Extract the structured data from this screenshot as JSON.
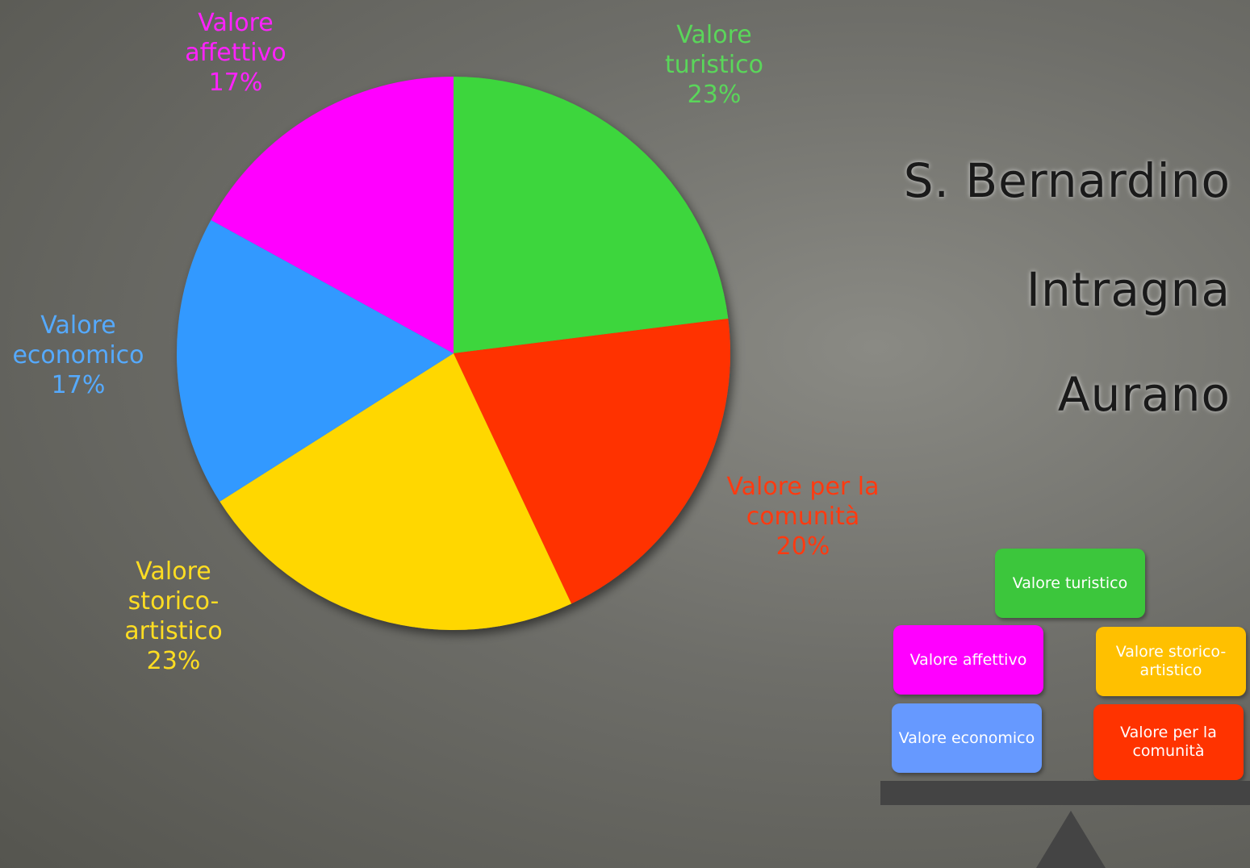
{
  "chart_data": {
    "type": "pie",
    "categories": [
      "Valore turistico",
      "Valore per la comunità",
      "Valore storico-artistico",
      "Valore economico",
      "Valore affettivo"
    ],
    "values": [
      23,
      20,
      23,
      17,
      17
    ],
    "value_labels": [
      "23%",
      "20%",
      "23%",
      "17%",
      "17%"
    ],
    "colors": [
      "#3cd63c",
      "#ff3300",
      "#ffd700",
      "#3399ff",
      "#ff00ff"
    ]
  },
  "places": [
    "S. Bernardino",
    "Intragna",
    "Aurano"
  ],
  "balance": {
    "boxes": [
      "Valore turistico",
      "Valore affettivo",
      "Valore storico-artistico",
      "Valore economico",
      "Valore per la comunità"
    ]
  }
}
